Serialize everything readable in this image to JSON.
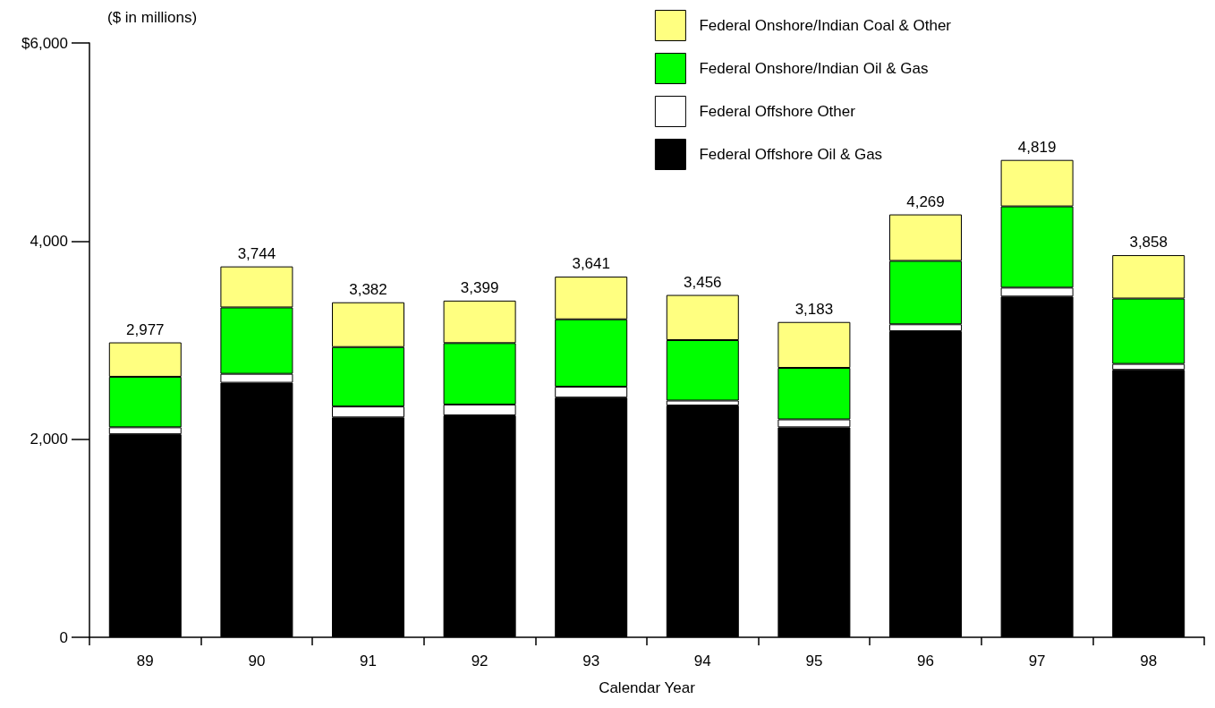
{
  "chart_data": {
    "type": "bar",
    "stacked": true,
    "ylabel": "($ in millions)",
    "xlabel": "Calendar Year",
    "categories": [
      "89",
      "90",
      "91",
      "92",
      "93",
      "94",
      "95",
      "96",
      "97",
      "98"
    ],
    "series": [
      {
        "name": "Federal Offshore Oil & Gas",
        "color": "#000000",
        "values": [
          2050,
          2570,
          2220,
          2240,
          2420,
          2340,
          2120,
          3090,
          3440,
          2700
        ]
      },
      {
        "name": "Federal Offshore Other",
        "color": "#ffffff",
        "values": [
          70,
          90,
          110,
          110,
          110,
          50,
          80,
          70,
          90,
          60
        ]
      },
      {
        "name": "Federal Onshore/Indian Oil & Gas",
        "color": "#00ff00",
        "values": [
          510,
          670,
          600,
          620,
          680,
          610,
          520,
          640,
          820,
          660
        ]
      },
      {
        "name": "Federal Onshore/Indian Coal & Other",
        "color": "#ffff80",
        "values": [
          347,
          414,
          452,
          429,
          431,
          456,
          463,
          469,
          469,
          438
        ]
      }
    ],
    "totals": [
      "2,977",
      "3,744",
      "3,382",
      "3,399",
      "3,641",
      "3,456",
      "3,183",
      "4,269",
      "4,819",
      "3,858"
    ],
    "ylim": [
      0,
      6000
    ],
    "yticks": [
      {
        "value": 0,
        "label": "0"
      },
      {
        "value": 2000,
        "label": "2,000"
      },
      {
        "value": 4000,
        "label": "4,000"
      },
      {
        "value": 6000,
        "label": "$6,000"
      }
    ],
    "legend": "top right",
    "grid": false
  }
}
